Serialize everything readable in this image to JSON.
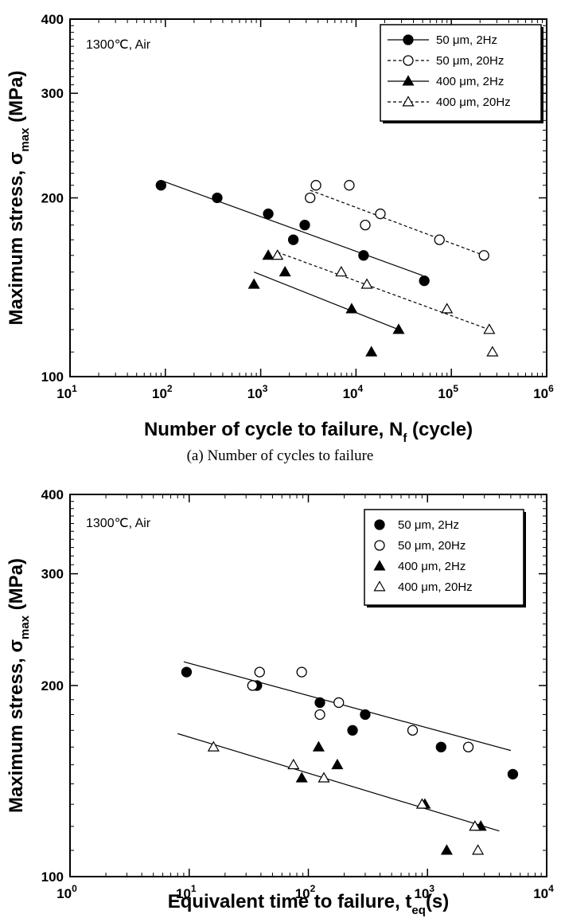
{
  "caption_a": "(a) Number of cycles to failure",
  "chart_data": [
    {
      "type": "scatter",
      "log_x": true,
      "log_y": true,
      "xlim": [
        10,
        1000000
      ],
      "ylim": [
        100,
        400
      ],
      "xlabel": "Number of cycle to failure, N",
      "xlabel_sub": "f",
      "xlabel_suffix": " (cycle)",
      "ylabel": "Maximum stress, σ",
      "ylabel_sub": "max",
      "ylabel_suffix": " (MPa)",
      "annotation": "1300℃, Air",
      "x_ticks": [
        {
          "value": 10,
          "base": "10",
          "exp": "1"
        },
        {
          "value": 100,
          "base": "10",
          "exp": "2"
        },
        {
          "value": 1000,
          "base": "10",
          "exp": "3"
        },
        {
          "value": 10000,
          "base": "10",
          "exp": "4"
        },
        {
          "value": 100000,
          "base": "10",
          "exp": "5"
        },
        {
          "value": 1000000,
          "base": "10",
          "exp": "6"
        }
      ],
      "y_ticks": [
        {
          "value": 100,
          "label": "100"
        },
        {
          "value": 200,
          "label": "200"
        },
        {
          "value": 300,
          "label": "300"
        },
        {
          "value": 400,
          "label": "400"
        }
      ],
      "series": [
        {
          "name": "50 μm, 2Hz",
          "marker": "circle",
          "filled": true,
          "line": "solid",
          "points": [
            [
              90,
              210
            ],
            [
              350,
              200
            ],
            [
              1200,
              188
            ],
            [
              2200,
              170
            ],
            [
              2900,
              180
            ],
            [
              12000,
              160
            ],
            [
              52000,
              145
            ]
          ],
          "fit": [
            [
              90,
              214
            ],
            [
              50000,
              148
            ]
          ]
        },
        {
          "name": "50 μm, 20Hz",
          "marker": "circle",
          "filled": false,
          "line": "dashed",
          "points": [
            [
              3300,
              200
            ],
            [
              3800,
              210
            ],
            [
              8500,
              210
            ],
            [
              12500,
              180
            ],
            [
              18000,
              188
            ],
            [
              75000,
              170
            ],
            [
              220000,
              160
            ]
          ],
          "fit": [
            [
              3300,
              206
            ],
            [
              220000,
              160
            ]
          ]
        },
        {
          "name": "400 μm, 2Hz",
          "marker": "triangle",
          "filled": true,
          "line": "solid",
          "points": [
            [
              850,
              143
            ],
            [
              1200,
              160
            ],
            [
              1800,
              150
            ],
            [
              9000,
              130
            ],
            [
              14500,
              110
            ],
            [
              28000,
              120
            ]
          ],
          "fit": [
            [
              850,
              150
            ],
            [
              28000,
              120
            ]
          ]
        },
        {
          "name": "400 μm, 20Hz",
          "marker": "triangle",
          "filled": false,
          "line": "dashed",
          "points": [
            [
              1500,
              160
            ],
            [
              7000,
              150
            ],
            [
              13000,
              143
            ],
            [
              90000,
              130
            ],
            [
              250000,
              120
            ],
            [
              270000,
              110
            ]
          ],
          "fit": [
            [
              1500,
              162
            ],
            [
              250000,
              120
            ]
          ]
        }
      ]
    },
    {
      "type": "scatter",
      "log_x": true,
      "log_y": true,
      "xlim": [
        1,
        10000
      ],
      "ylim": [
        100,
        400
      ],
      "xlabel": "Equivalent time to failure, t",
      "xlabel_sub": "eq",
      "xlabel_suffix": "(s)",
      "ylabel": "Maximum stress, σ",
      "ylabel_sub": "max",
      "ylabel_suffix": " (MPa)",
      "annotation": "1300℃, Air",
      "x_ticks": [
        {
          "value": 1,
          "base": "10",
          "exp": "0"
        },
        {
          "value": 10,
          "base": "10",
          "exp": "1"
        },
        {
          "value": 100,
          "base": "10",
          "exp": "2"
        },
        {
          "value": 1000,
          "base": "10",
          "exp": "3"
        },
        {
          "value": 10000,
          "base": "10",
          "exp": "4"
        }
      ],
      "y_ticks": [
        {
          "value": 100,
          "label": "100"
        },
        {
          "value": 200,
          "label": "200"
        },
        {
          "value": 300,
          "label": "300"
        },
        {
          "value": 400,
          "label": "400"
        }
      ],
      "series": [
        {
          "name": "50 μm, 2Hz",
          "marker": "circle",
          "filled": true,
          "points": [
            [
              9.5,
              210
            ],
            [
              37,
              200
            ],
            [
              125,
              188
            ],
            [
              235,
              170
            ],
            [
              300,
              180
            ],
            [
              1300,
              160
            ],
            [
              5200,
              145
            ]
          ]
        },
        {
          "name": "50 μm, 20Hz",
          "marker": "circle",
          "filled": false,
          "points": [
            [
              34,
              200
            ],
            [
              39,
              210
            ],
            [
              88,
              210
            ],
            [
              125,
              180
            ],
            [
              180,
              188
            ],
            [
              750,
              170
            ],
            [
              2200,
              160
            ]
          ]
        },
        {
          "name": "400 μm, 2Hz",
          "marker": "triangle",
          "filled": true,
          "points": [
            [
              88,
              143
            ],
            [
              122,
              160
            ],
            [
              175,
              150
            ],
            [
              950,
              130
            ],
            [
              1450,
              110
            ],
            [
              2800,
              120
            ]
          ]
        },
        {
          "name": "400 μm, 20Hz",
          "marker": "triangle",
          "filled": false,
          "points": [
            [
              16,
              160
            ],
            [
              75,
              150
            ],
            [
              135,
              143
            ],
            [
              900,
              130
            ],
            [
              2500,
              120
            ],
            [
              2650,
              110
            ]
          ]
        }
      ],
      "fit_lines": [
        {
          "points": [
            [
              9,
              218
            ],
            [
              5000,
              158
            ]
          ]
        },
        {
          "points": [
            [
              8,
              168
            ],
            [
              4000,
              118
            ]
          ]
        }
      ]
    }
  ]
}
